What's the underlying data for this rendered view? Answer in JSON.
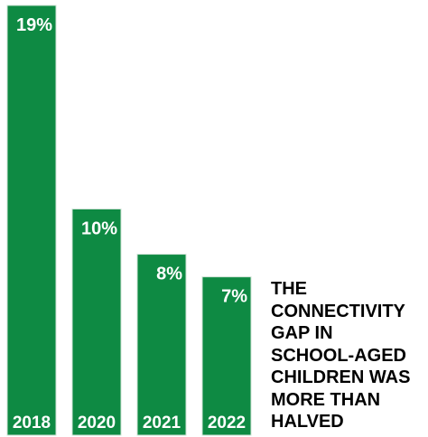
{
  "chart_data": {
    "type": "bar",
    "categories": [
      "2018",
      "2020",
      "2021",
      "2022"
    ],
    "values": [
      19,
      10,
      8,
      7
    ],
    "value_labels": [
      "19%",
      "10%",
      "8%",
      "7%"
    ],
    "ylim": [
      0,
      19
    ],
    "grid": false,
    "colors": {
      "bar": "#0e8a43",
      "label_text": "#ffffff",
      "annotation_text": "#000000"
    }
  },
  "annotation": {
    "lines": [
      "THE",
      "CONNECTIVITY",
      "GAP IN",
      "SCHOOL-AGED",
      "CHILDREN WAS",
      "MORE THAN",
      "HALVED"
    ]
  }
}
